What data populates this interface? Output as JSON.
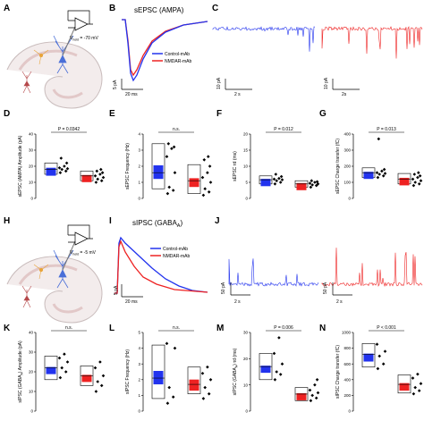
{
  "panel_labels": {
    "A": "A",
    "B": "B",
    "C": "C",
    "D": "D",
    "E": "E",
    "F": "F",
    "G": "G",
    "H": "H",
    "I": "I",
    "J": "J",
    "K": "K",
    "L": "L",
    "M": "M",
    "N": "N"
  },
  "colors": {
    "control": "#2233ee",
    "nmdar": "#ee2222",
    "black": "#000000"
  },
  "schematic_top": {
    "vhold": "V",
    "vhold_sub": "hold",
    "vhold_value": " = -70 mV"
  },
  "schematic_bottom": {
    "vhold": "V",
    "vhold_sub": "hold",
    "vhold_value": " = -5 mV"
  },
  "trace_top": {
    "title": "sEPSC (AMPA)",
    "legend": [
      "Control-mAb",
      "NMDAR-mAb"
    ],
    "scale_x": "20 ms",
    "scale_y": "5 pA"
  },
  "trace_bottom": {
    "title_prefix": "sIPSC (GABA",
    "title_sub": "A",
    "title_suffix": ")",
    "legend": [
      "Control-mAb",
      "NMDAR-mAb"
    ],
    "scale_x": "20 ms",
    "scale_y": "5 pA"
  },
  "recording_top": {
    "control": {
      "scale_y": "10 pA",
      "scale_x": "2 s"
    },
    "nmdar": {
      "scale_y": "10 pA",
      "scale_x": "2s"
    }
  },
  "recording_bottom": {
    "control": {
      "scale_y": "50 pA",
      "scale_x": "2 s"
    },
    "nmdar": {
      "scale_y": "50 pA",
      "scale_x": "2 s"
    }
  },
  "chart_data": [
    {
      "panel": "D",
      "type": "bar",
      "ylabel": "sEPSC (AMPA) Amplitude (pA)",
      "ylim": [
        0,
        40
      ],
      "yticks": [
        "0",
        "10",
        "20",
        "30",
        "40"
      ],
      "annotation": "P = 0.0342",
      "series": [
        {
          "name": "Control-mAb",
          "box": [
            15,
            22
          ],
          "mean": 18,
          "points": [
            16,
            17,
            18,
            18.5,
            19,
            20,
            22,
            25
          ]
        },
        {
          "name": "NMDAR-mAb",
          "box": [
            11,
            17
          ],
          "mean": 14,
          "points": [
            10,
            11,
            12,
            13,
            14,
            15,
            16,
            17,
            18
          ]
        }
      ]
    },
    {
      "panel": "E",
      "type": "bar",
      "ylabel": "sEPSC Frequency (Hz)",
      "ylim": [
        0,
        4
      ],
      "yticks": [
        "0",
        "1",
        "2",
        "3",
        "4"
      ],
      "annotation": "n.s.",
      "series": [
        {
          "name": "Control-mAb",
          "box": [
            0.6,
            3.4
          ],
          "mean": 1.6,
          "points": [
            0.3,
            0.5,
            0.7,
            1.6,
            2.6,
            3.1,
            3.2,
            3.4
          ]
        },
        {
          "name": "NMDAR-mAb",
          "box": [
            0.3,
            2.1
          ],
          "mean": 1.1,
          "points": [
            0.2,
            0.4,
            0.6,
            1.0,
            1.3,
            1.6,
            2.0,
            2.4,
            2.6
          ]
        }
      ]
    },
    {
      "panel": "F",
      "type": "bar",
      "ylabel": "sEPSC τd (ms)",
      "ylim": [
        0,
        20
      ],
      "yticks": [
        "0",
        "5",
        "10",
        "15",
        "20"
      ],
      "annotation": "P = 0.012",
      "series": [
        {
          "name": "Control-mAb",
          "box": [
            4.5,
            7.0
          ],
          "mean": 5.8,
          "points": [
            4.5,
            5.0,
            5.5,
            5.8,
            6.0,
            6.2,
            6.8,
            7.5
          ]
        },
        {
          "name": "NMDAR-mAb",
          "box": [
            3.5,
            5.5
          ],
          "mean": 4.5,
          "points": [
            3.5,
            4.0,
            4.2,
            4.5,
            4.7,
            5.0,
            5.2,
            5.5
          ]
        }
      ]
    },
    {
      "panel": "G",
      "type": "bar",
      "ylabel": "sEPSC Charge transfer (fC)",
      "ylim": [
        0,
        400
      ],
      "yticks": [
        "0",
        "100",
        "200",
        "300",
        "400"
      ],
      "annotation": "P = 0.013",
      "series": [
        {
          "name": "Control-mAb",
          "box": [
            130,
            190
          ],
          "mean": 160,
          "points": [
            130,
            140,
            150,
            155,
            160,
            170,
            180,
            370
          ]
        },
        {
          "name": "NMDAR-mAb",
          "box": [
            90,
            155
          ],
          "mean": 120,
          "points": [
            80,
            90,
            100,
            110,
            120,
            130,
            140,
            150,
            160
          ]
        }
      ]
    },
    {
      "panel": "K",
      "type": "bar",
      "ylabel_prefix": "sIPSC (GABA",
      "ylabel_sub": "A",
      "ylabel_suffix": ") Amplitude (pA)",
      "ylim": [
        0,
        40
      ],
      "yticks": [
        "0",
        "10",
        "20",
        "30",
        "40"
      ],
      "annotation": "n.s.",
      "series": [
        {
          "name": "Control-mAb",
          "box": [
            16,
            28
          ],
          "mean": 22,
          "points": [
            17,
            20,
            22,
            25,
            27,
            29
          ]
        },
        {
          "name": "NMDAR-mAb",
          "box": [
            13,
            23
          ],
          "mean": 18,
          "points": [
            10,
            13,
            15,
            18,
            22,
            25
          ]
        }
      ]
    },
    {
      "panel": "L",
      "type": "bar",
      "ylabel": "sIPSC Frequency (Hz)",
      "ylim": [
        0,
        5
      ],
      "yticks": [
        "0",
        "1",
        "2",
        "3",
        "4",
        "5"
      ],
      "annotation": "n.s.",
      "series": [
        {
          "name": "Control-mAb",
          "box": [
            0.8,
            4.2
          ],
          "mean": 2.1,
          "points": [
            0.5,
            0.9,
            1.5,
            4.0,
            4.3
          ]
        },
        {
          "name": "NMDAR-mAb",
          "box": [
            1.1,
            2.8
          ],
          "mean": 1.7,
          "points": [
            0.8,
            1.1,
            1.5,
            2.0,
            2.4,
            2.8
          ]
        }
      ]
    },
    {
      "panel": "M",
      "type": "bar",
      "ylabel_prefix": "sIPSC (GABA",
      "ylabel_sub": "A",
      "ylabel_suffix": ") τd (ms)",
      "ylim": [
        0,
        30
      ],
      "yticks": [
        "0",
        "10",
        "20",
        "30"
      ],
      "annotation": "P = 0.006",
      "series": [
        {
          "name": "Control-mAb",
          "box": [
            12,
            22
          ],
          "mean": 17,
          "points": [
            12,
            14,
            15,
            18,
            22,
            28
          ]
        },
        {
          "name": "NMDAR-mAb",
          "box": [
            4,
            9
          ],
          "mean": 6.5,
          "points": [
            4,
            5,
            6,
            7,
            8,
            10,
            12
          ]
        }
      ]
    },
    {
      "panel": "N",
      "type": "bar",
      "ylabel": "sIPSC Charge transfer (fC)",
      "ylim": [
        0,
        1000
      ],
      "yticks": [
        "0",
        "200",
        "400",
        "600",
        "800",
        "1000"
      ],
      "annotation": "P < 0.001",
      "series": [
        {
          "name": "Control-mAb",
          "box": [
            560,
            860
          ],
          "mean": 720,
          "points": [
            540,
            600,
            700,
            760,
            850
          ]
        },
        {
          "name": "NMDAR-mAb",
          "box": [
            230,
            460
          ],
          "mean": 340,
          "points": [
            220,
            260,
            300,
            350,
            420,
            470
          ]
        }
      ]
    }
  ]
}
